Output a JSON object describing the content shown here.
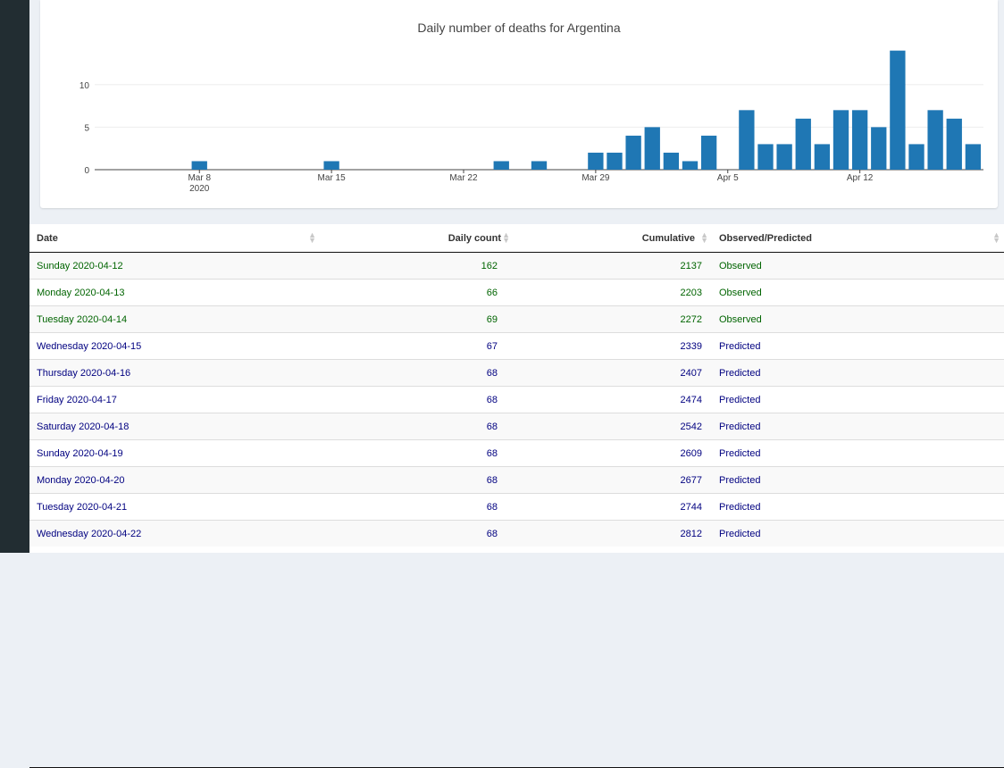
{
  "chart_data": {
    "type": "bar",
    "title": "Daily number of deaths for Argentina",
    "x_start": "2020-03-03",
    "values": [
      0,
      0,
      0,
      0,
      0,
      1,
      0,
      0,
      0,
      0,
      0,
      0,
      1,
      0,
      0,
      0,
      0,
      0,
      0,
      0,
      0,
      1,
      0,
      1,
      0,
      0,
      2,
      2,
      4,
      5,
      2,
      1,
      4,
      0,
      7,
      3,
      3,
      6,
      3,
      7,
      7,
      5,
      14,
      3,
      7,
      6,
      3
    ],
    "x_ticks": [
      {
        "date": "2020-03-08",
        "label": "Mar 8",
        "sub": "2020"
      },
      {
        "date": "2020-03-15",
        "label": "Mar 15",
        "sub": ""
      },
      {
        "date": "2020-03-22",
        "label": "Mar 22",
        "sub": ""
      },
      {
        "date": "2020-03-29",
        "label": "Mar 29",
        "sub": ""
      },
      {
        "date": "2020-04-05",
        "label": "Apr 5",
        "sub": ""
      },
      {
        "date": "2020-04-12",
        "label": "Apr 12",
        "sub": ""
      }
    ],
    "y_ticks": [
      0,
      5,
      10
    ],
    "ylim": [
      0,
      14.7
    ],
    "color": "#1f77b4",
    "grid": true,
    "xlabel": "",
    "ylabel": ""
  },
  "table": {
    "columns": [
      "Date",
      "Daily count",
      "Cumulative",
      "Observed/Predicted"
    ],
    "rows": [
      {
        "date": "Sunday 2020-04-12",
        "daily": "162",
        "cum": "2137",
        "status": "Observed"
      },
      {
        "date": "Monday 2020-04-13",
        "daily": "66",
        "cum": "2203",
        "status": "Observed"
      },
      {
        "date": "Tuesday 2020-04-14",
        "daily": "69",
        "cum": "2272",
        "status": "Observed"
      },
      {
        "date": "Wednesday 2020-04-15",
        "daily": "67",
        "cum": "2339",
        "status": "Predicted"
      },
      {
        "date": "Thursday 2020-04-16",
        "daily": "68",
        "cum": "2407",
        "status": "Predicted"
      },
      {
        "date": "Friday 2020-04-17",
        "daily": "68",
        "cum": "2474",
        "status": "Predicted"
      },
      {
        "date": "Saturday 2020-04-18",
        "daily": "68",
        "cum": "2542",
        "status": "Predicted"
      },
      {
        "date": "Sunday 2020-04-19",
        "daily": "68",
        "cum": "2609",
        "status": "Predicted"
      },
      {
        "date": "Monday 2020-04-20",
        "daily": "68",
        "cum": "2677",
        "status": "Predicted"
      },
      {
        "date": "Tuesday 2020-04-21",
        "daily": "68",
        "cum": "2744",
        "status": "Predicted"
      },
      {
        "date": "Wednesday 2020-04-22",
        "daily": "68",
        "cum": "2812",
        "status": "Predicted"
      }
    ],
    "colors": {
      "observed": "#006400",
      "predicted": "#000080"
    }
  }
}
